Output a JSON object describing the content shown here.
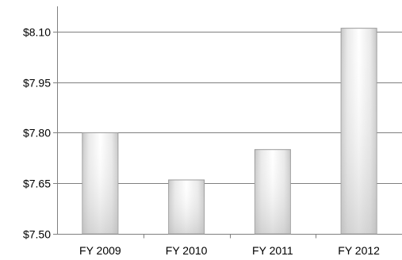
{
  "chart_data": {
    "type": "bar",
    "title": "",
    "xlabel": "",
    "ylabel": "",
    "categories": [
      "FY 2009",
      "FY 2010",
      "FY 2011",
      "FY 2012"
    ],
    "values": [
      7.8,
      7.66,
      7.75,
      8.11
    ],
    "ylim": [
      7.5,
      8.175
    ],
    "yticks": [
      7.5,
      7.65,
      7.8,
      7.95,
      8.1
    ],
    "ytick_labels": [
      "$7.50",
      "$7.65",
      "$7.80",
      "$7.95",
      "$8.10"
    ],
    "grid": true,
    "legend": "none",
    "bar_fill": "#f3f3f3",
    "bar_shade": "#c8c8c8"
  }
}
